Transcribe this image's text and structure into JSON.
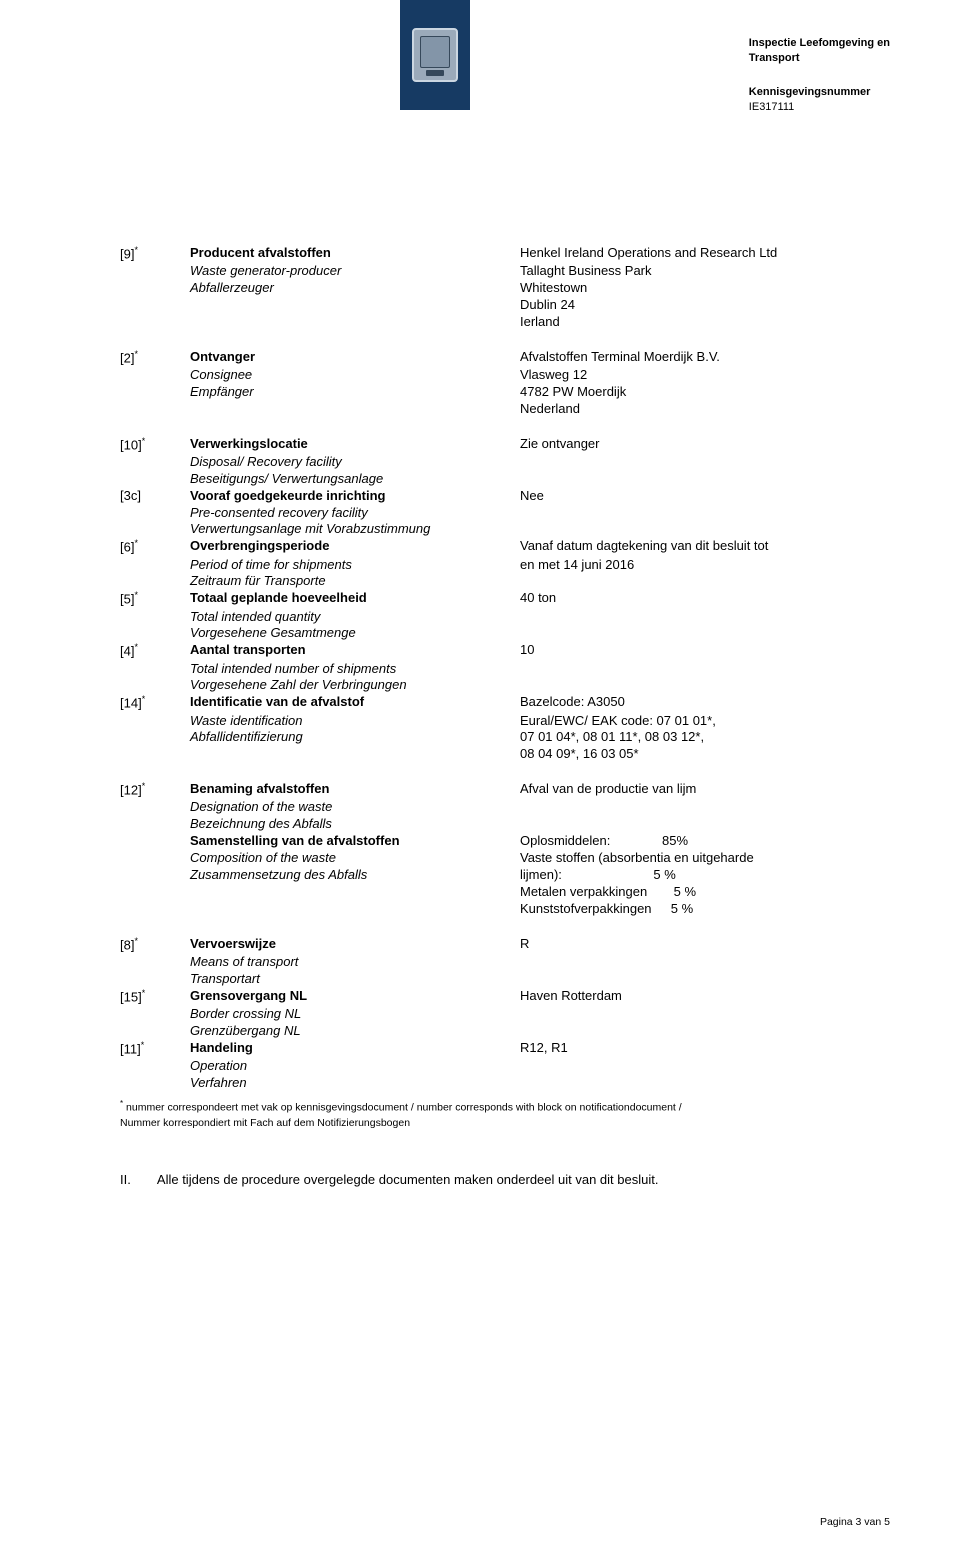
{
  "colors": {
    "header_strip": "#163a63",
    "text": "#000000",
    "background": "#ffffff"
  },
  "header": {
    "org_line1": "Inspectie Leefomgeving en",
    "org_line2": "Transport",
    "notif_label": "Kennisgevingsnummer",
    "notif_value": "IE317111"
  },
  "rows": {
    "r9": {
      "idx": "[9]",
      "title": "Producent afvalstoffen",
      "sub1": "Waste generator-producer",
      "sub2": "Abfallerzeuger",
      "v1": "Henkel Ireland Operations and Research Ltd",
      "v2": "Tallaght Business Park",
      "v3": "Whitestown",
      "v4": "Dublin 24",
      "v5": "Ierland"
    },
    "r2": {
      "idx": "[2]",
      "title": "Ontvanger",
      "sub1": "Consignee",
      "sub2": "Empfänger",
      "v1": "Afvalstoffen Terminal Moerdijk B.V.",
      "v2": "Vlasweg 12",
      "v3": "4782 PW Moerdijk",
      "v4": "Nederland"
    },
    "r10": {
      "idx": "[10]",
      "title": "Verwerkingslocatie",
      "sub1": "Disposal/ Recovery facility",
      "sub2": "Beseitigungs/ Verwertungsanlage",
      "v1": "Zie ontvanger"
    },
    "r3c": {
      "idx": "[3c]",
      "title": "Vooraf goedgekeurde inrichting",
      "sub1": "Pre-consented recovery facility",
      "sub2": "Verwertungsanlage mit Vorabzustimmung",
      "v1": "Nee"
    },
    "r6": {
      "idx": "[6]",
      "title": "Overbrengingsperiode",
      "sub1": "Period of time for shipments",
      "sub2": "Zeitraum für Transporte",
      "v1": "Vanaf datum dagtekening van dit besluit tot",
      "v2": "en met 14 juni 2016"
    },
    "r5": {
      "idx": "[5]",
      "title": "Totaal geplande hoeveelheid",
      "sub1": "Total intended quantity",
      "sub2": "Vorgesehene Gesamtmenge",
      "v1": "40 ton"
    },
    "r4": {
      "idx": "[4]",
      "title": "Aantal transporten",
      "sub1": "Total intended number of shipments",
      "sub2": "Vorgesehene Zahl der Verbringungen",
      "v1": "10"
    },
    "r14": {
      "idx": "[14]",
      "title": "Identificatie van de afvalstof",
      "sub1": "Waste identification",
      "sub2": "Abfallidentifizierung",
      "v1": "Bazelcode: A3050",
      "v2": "Eural/EWC/ EAK code: 07 01 01*,",
      "v3": "07 01 04*, 08 01 11*, 08 03 12*,",
      "v4": "08 04 09*, 16 03 05*"
    },
    "r12a": {
      "idx": "[12]",
      "title": "Benaming afvalstoffen",
      "sub1": "Designation of the waste",
      "sub2": "Bezeichnung des Abfalls",
      "v1": "Afval van de productie van lijm"
    },
    "r12b": {
      "title": "Samenstelling van de afvalstoffen",
      "sub1": "Composition of the waste",
      "sub2": "Zusammensetzung des Abfalls",
      "l1a": "Oplosmiddelen:",
      "l1b": "85%",
      "l2": "Vaste stoffen (absorbentia en uitgeharde",
      "l3a": "lijmen):",
      "l3b": "5 %",
      "l4a": "Metalen verpakkingen",
      "l4b": "5 %",
      "l5a": "Kunststofverpakkingen",
      "l5b": "5 %"
    },
    "r8": {
      "idx": "[8]",
      "title": "Vervoerswijze",
      "sub1": "Means of transport",
      "sub2": "Transportart",
      "v1": "R"
    },
    "r15": {
      "idx": "[15]",
      "title": "Grensovergang NL",
      "sub1": "Border crossing NL",
      "sub2": "Grenzübergang NL",
      "v1": "Haven Rotterdam"
    },
    "r11": {
      "idx": "[11]",
      "title": "Handeling",
      "sub1": "Operation",
      "sub2": "Verfahren",
      "v1": "R12, R1"
    }
  },
  "footnote": {
    "star": "*",
    "line1": "nummer correspondeert met vak op kennisgevingsdocument / number corresponds with block on notificationdocument /",
    "line2": "Nummer korrespondiert mit Fach auf dem Notifizierungsbogen"
  },
  "sectionII": {
    "num": "II.",
    "text": "Alle tijdens de procedure overgelegde documenten maken onderdeel uit van dit besluit."
  },
  "pagenum": "Pagina 3 van 5"
}
